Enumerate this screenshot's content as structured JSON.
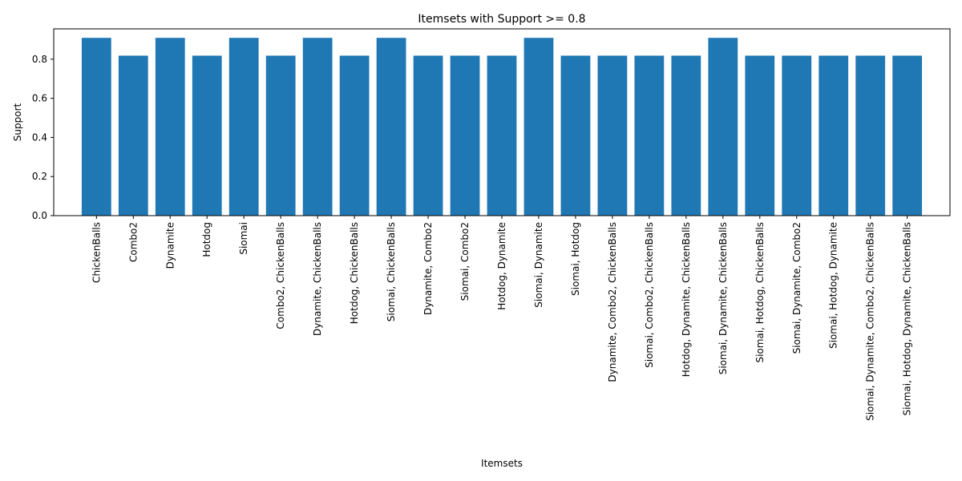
{
  "chart_data": {
    "type": "bar",
    "title": "Itemsets with Support >= 0.8",
    "xlabel": "Itemsets",
    "ylabel": "Support",
    "ylim": [
      0,
      0.955
    ],
    "yticks": [
      "0.0",
      "0.2",
      "0.4",
      "0.6",
      "0.8"
    ],
    "grid": false,
    "bar_color": "#1f77b4",
    "categories": [
      "ChickenBalls",
      "Combo2",
      "Dynamite",
      "Hotdog",
      "Siomai",
      "Combo2, ChickenBalls",
      "Dynamite, ChickenBalls",
      "Hotdog, ChickenBalls",
      "Siomai, ChickenBalls",
      "Dynamite, Combo2",
      "Siomai, Combo2",
      "Hotdog, Dynamite",
      "Siomai, Dynamite",
      "Siomai, Hotdog",
      "Dynamite, Combo2, ChickenBalls",
      "Siomai, Combo2, ChickenBalls",
      "Hotdog, Dynamite, ChickenBalls",
      "Siomai, Dynamite, ChickenBalls",
      "Siomai, Hotdog, ChickenBalls",
      "Siomai, Dynamite, Combo2",
      "Siomai, Hotdog, Dynamite",
      "Siomai, Dynamite, Combo2, ChickenBalls",
      "Siomai, Hotdog, Dynamite, ChickenBalls"
    ],
    "values": [
      0.909,
      0.818,
      0.909,
      0.818,
      0.909,
      0.818,
      0.909,
      0.818,
      0.909,
      0.818,
      0.818,
      0.818,
      0.909,
      0.818,
      0.818,
      0.818,
      0.818,
      0.909,
      0.818,
      0.818,
      0.818,
      0.818,
      0.818
    ]
  }
}
